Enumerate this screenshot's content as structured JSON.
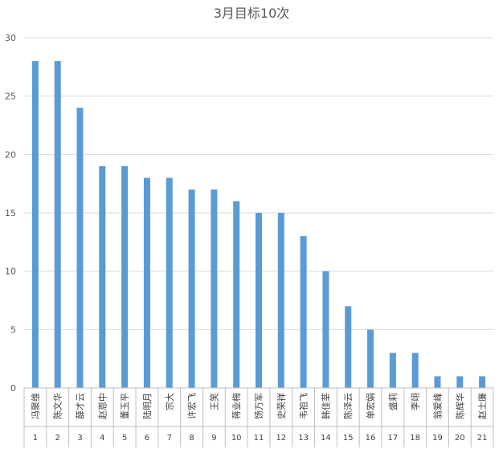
{
  "chart_data": {
    "type": "bar",
    "title": "3月目标10次",
    "xlabel": "",
    "ylabel": "",
    "ylim": [
      0,
      30
    ],
    "yticks": [
      0,
      5,
      10,
      15,
      20,
      25,
      30
    ],
    "grid": true,
    "legend": "none",
    "bar_color": "#5b9bd5",
    "categories": [
      {
        "index": "1",
        "name": "冯聚维"
      },
      {
        "index": "2",
        "name": "陈文华"
      },
      {
        "index": "3",
        "name": "薛才云"
      },
      {
        "index": "4",
        "name": "赵恩中"
      },
      {
        "index": "5",
        "name": "董玉平"
      },
      {
        "index": "6",
        "name": "陆明月"
      },
      {
        "index": "7",
        "name": "宗大"
      },
      {
        "index": "8",
        "name": "许宏飞"
      },
      {
        "index": "9",
        "name": "王笑"
      },
      {
        "index": "10",
        "name": "蒋业梅"
      },
      {
        "index": "11",
        "name": "饧万军"
      },
      {
        "index": "12",
        "name": "史荣祥"
      },
      {
        "index": "13",
        "name": "韦祖飞"
      },
      {
        "index": "14",
        "name": "韩佳莘"
      },
      {
        "index": "15",
        "name": "陈泽云"
      },
      {
        "index": "16",
        "name": "单宏娟"
      },
      {
        "index": "17",
        "name": "盛莉"
      },
      {
        "index": "18",
        "name": "李翊"
      },
      {
        "index": "19",
        "name": "翁爱峰"
      },
      {
        "index": "20",
        "name": "陈辉华"
      },
      {
        "index": "21",
        "name": "赵士廉"
      }
    ],
    "values": [
      28,
      28,
      24,
      19,
      19,
      18,
      18,
      17,
      17,
      16,
      15,
      15,
      13,
      10,
      7,
      5,
      3,
      3,
      1,
      1,
      1
    ]
  }
}
